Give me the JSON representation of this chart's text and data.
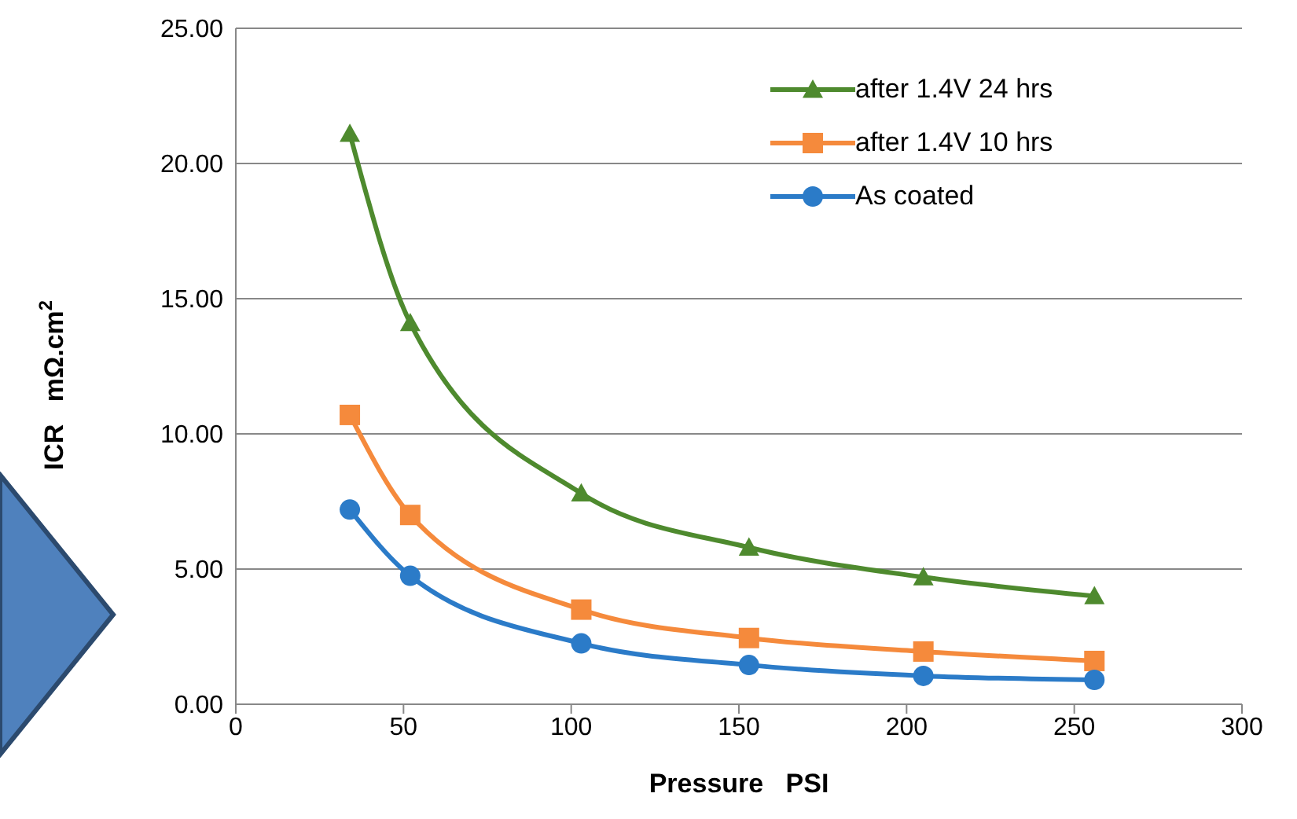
{
  "chart_data": {
    "type": "line",
    "xlabel": "Pressure   PSI",
    "ylabel": "ICR   mΩ.cm$^{2}$",
    "xlim": [
      0,
      300
    ],
    "xticks": [
      0,
      50,
      100,
      150,
      200,
      250,
      300
    ],
    "ylim": [
      0,
      25
    ],
    "yticks": [
      {
        "value": 0,
        "label": "0.00"
      },
      {
        "value": 5,
        "label": "5.00"
      },
      {
        "value": 10,
        "label": "10.00"
      },
      {
        "value": 15,
        "label": "15.00"
      },
      {
        "value": 20,
        "label": "20.00"
      },
      {
        "value": 25,
        "label": "25.00"
      }
    ],
    "grid": "y",
    "legend": "top right",
    "x": [
      34,
      52,
      103,
      153,
      205,
      256
    ],
    "series": [
      {
        "name": "after 1.4V 24 hrs",
        "color": "#4e8a2e",
        "marker": "triangle",
        "values": [
          21.1,
          14.1,
          7.8,
          5.8,
          4.7,
          4.0
        ]
      },
      {
        "name": "after 1.4V 10 hrs",
        "color": "#f58a3c",
        "marker": "square",
        "values": [
          10.7,
          7.0,
          3.5,
          2.45,
          1.95,
          1.6
        ]
      },
      {
        "name": "As coated",
        "color": "#2b7bc8",
        "marker": "circle",
        "values": [
          7.2,
          4.75,
          2.25,
          1.45,
          1.05,
          0.9
        ]
      }
    ]
  }
}
